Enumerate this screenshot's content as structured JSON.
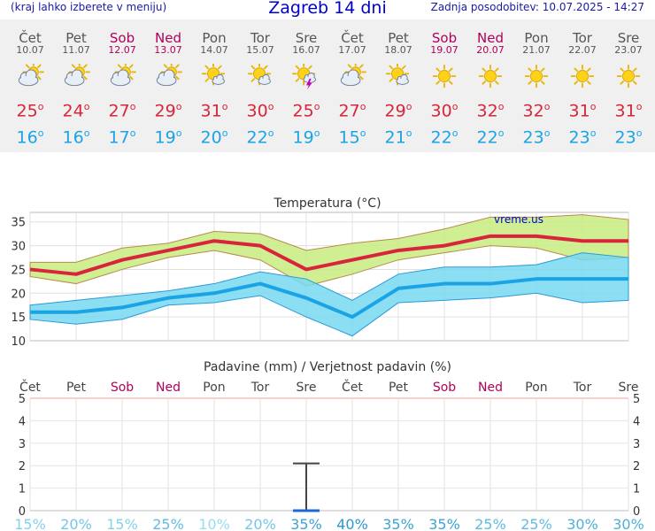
{
  "header": {
    "left": "(kraj lahko izberete v meniju)",
    "title": "Zagreb 14 dni",
    "right": "Zadnja posodobitev: 10.07.2025 - 14:27"
  },
  "days": [
    {
      "name": "Čet",
      "date": "10.07",
      "weekend": false,
      "icon": "cloudy-sun-icon",
      "max": "25",
      "min": "16"
    },
    {
      "name": "Pet",
      "date": "11.07",
      "weekend": false,
      "icon": "cloudy-sun-icon",
      "max": "24",
      "min": "16"
    },
    {
      "name": "Sob",
      "date": "12.07",
      "weekend": true,
      "icon": "cloudy-sun-icon",
      "max": "27",
      "min": "17"
    },
    {
      "name": "Ned",
      "date": "13.07",
      "weekend": true,
      "icon": "cloudy-sun-icon",
      "max": "29",
      "min": "19"
    },
    {
      "name": "Pon",
      "date": "14.07",
      "weekend": false,
      "icon": "sun-cloud-icon",
      "max": "31",
      "min": "20"
    },
    {
      "name": "Tor",
      "date": "15.07",
      "weekend": false,
      "icon": "sun-cloud-icon",
      "max": "30",
      "min": "22"
    },
    {
      "name": "Sre",
      "date": "16.07",
      "weekend": false,
      "icon": "sun-cloud-storm-icon",
      "max": "25",
      "min": "19"
    },
    {
      "name": "Čet",
      "date": "17.07",
      "weekend": false,
      "icon": "cloudy-sun-icon",
      "max": "27",
      "min": "15"
    },
    {
      "name": "Pet",
      "date": "18.07",
      "weekend": false,
      "icon": "sun-cloud-icon",
      "max": "29",
      "min": "21"
    },
    {
      "name": "Sob",
      "date": "19.07",
      "weekend": true,
      "icon": "sun-icon",
      "max": "30",
      "min": "22"
    },
    {
      "name": "Ned",
      "date": "20.07",
      "weekend": true,
      "icon": "sun-icon",
      "max": "32",
      "min": "22"
    },
    {
      "name": "Pon",
      "date": "21.07",
      "weekend": false,
      "icon": "sun-icon",
      "max": "32",
      "min": "23"
    },
    {
      "name": "Tor",
      "date": "22.07",
      "weekend": false,
      "icon": "sun-icon",
      "max": "31",
      "min": "23"
    },
    {
      "name": "Sre",
      "date": "23.07",
      "weekend": false,
      "icon": "sun-icon",
      "max": "31",
      "min": "23"
    }
  ],
  "colors": {
    "max": "#d8253c",
    "min": "#1aa4e6",
    "max_band": "#c8ec80",
    "min_band": "#78d8f0",
    "weekend": "#b0005a",
    "precip_marker": "#1a6ad8"
  },
  "chart_data": [
    {
      "type": "line",
      "title": "Temperatura (°C)",
      "watermark": "vreme.us",
      "ylim": [
        10,
        37
      ],
      "yticks": [
        10,
        15,
        20,
        25,
        30,
        35
      ],
      "series": [
        {
          "values": [
            25,
            24,
            27,
            29,
            31,
            30,
            25,
            27,
            29,
            30,
            32,
            32,
            31,
            31
          ]
        },
        {
          "values": [
            16,
            16,
            17,
            19,
            20,
            22,
            19,
            15,
            21,
            22,
            22,
            23,
            23,
            23
          ]
        }
      ],
      "max_band": {
        "upper": [
          26.5,
          26.5,
          29.5,
          30.5,
          33,
          32.5,
          29,
          30.5,
          31.5,
          33.5,
          36,
          36,
          36.5,
          35.5
        ],
        "lower": [
          23.5,
          22,
          25,
          27.5,
          29,
          27,
          21.5,
          24,
          27,
          28.5,
          30,
          29.5,
          27,
          27.5
        ]
      },
      "min_band": {
        "upper": [
          17.5,
          18.5,
          19.5,
          20.5,
          22,
          24.5,
          23,
          18.5,
          24,
          25.5,
          25.5,
          26,
          28.5,
          27.5
        ],
        "lower": [
          14.5,
          13.5,
          14.5,
          17.5,
          18,
          19.5,
          15,
          11,
          18,
          18.5,
          19,
          20,
          18,
          18.5
        ]
      }
    },
    {
      "type": "bar",
      "title": "Padavine (mm) / Verjetnost padavin (%)",
      "categories": [
        "Čet",
        "Pet",
        "Sob",
        "Ned",
        "Pon",
        "Tor",
        "Sre",
        "Čet",
        "Pet",
        "Sob",
        "Ned",
        "Pon",
        "Tor",
        "Sre"
      ],
      "weekend": [
        false,
        false,
        true,
        true,
        false,
        false,
        false,
        false,
        false,
        true,
        true,
        false,
        false,
        false
      ],
      "ylim": [
        0,
        5
      ],
      "yticks": [
        0,
        1,
        2,
        3,
        4,
        5
      ],
      "values": [
        0,
        0,
        0,
        0,
        0,
        0,
        0,
        0,
        0,
        0,
        0,
        0,
        0,
        0
      ],
      "error_bar": {
        "index": 6,
        "low": 0,
        "high": 2.1
      },
      "probability": [
        "15%",
        "20%",
        "15%",
        "25%",
        "10%",
        "20%",
        "35%",
        "40%",
        "35%",
        "35%",
        "25%",
        "25%",
        "30%",
        "30%"
      ]
    }
  ]
}
